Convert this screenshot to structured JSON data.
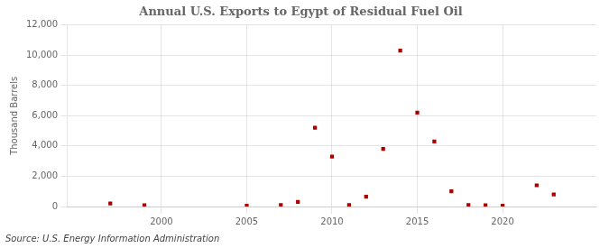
{
  "chart_data": {
    "type": "scatter",
    "title": "Annual U.S. Exports to Egypt of Residual Fuel Oil",
    "ylabel": "Thousand Barrels",
    "annotation": "Source: U.S. Energy Information Administration",
    "x": [
      1997,
      1999,
      2005,
      2007,
      2008,
      2009,
      2010,
      2011,
      2012,
      2013,
      2014,
      2015,
      2016,
      2017,
      2018,
      2019,
      2020,
      2022,
      2023
    ],
    "values": [
      200,
      80,
      50,
      100,
      300,
      5200,
      3300,
      100,
      650,
      3800,
      10300,
      6200,
      4300,
      1000,
      100,
      80,
      50,
      1400,
      800
    ],
    "color": "#aa0000",
    "marker": "square",
    "xlim": [
      1994.5,
      2025.5
    ],
    "xticks": [
      2000,
      2005,
      2010,
      2015,
      2020
    ],
    "ylim": [
      0,
      12000
    ],
    "yticks": [
      0,
      {
        "value": 2000,
        "label": "2,000"
      },
      {
        "value": 4000,
        "label": "4,000"
      },
      {
        "value": 6000,
        "label": "6,000"
      },
      {
        "value": 8000,
        "label": "8,000"
      },
      {
        "value": 10000,
        "label": "10,000"
      },
      {
        "value": 12000,
        "label": "12,000"
      }
    ],
    "grid": true
  }
}
